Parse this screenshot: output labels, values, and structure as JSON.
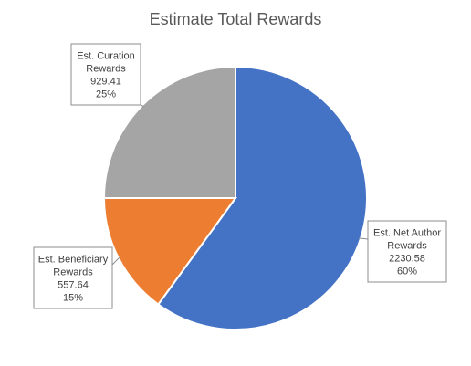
{
  "chart_data": {
    "type": "pie",
    "title": "Estimate Total Rewards",
    "slices": [
      {
        "label_lines": [
          "Est. Net Author",
          "Rewards"
        ],
        "value": 2230.58,
        "value_label": "2230.58",
        "percent_label": "60%",
        "color": "#4472C4"
      },
      {
        "label_lines": [
          "Est. Beneficiary",
          "Rewards"
        ],
        "value": 557.64,
        "value_label": "557.64",
        "percent_label": "15%",
        "color": "#ED7D31"
      },
      {
        "label_lines": [
          "Est. Curation",
          "Rewards"
        ],
        "value": 929.41,
        "value_label": "929.41",
        "percent_label": "25%",
        "color": "#A5A5A5"
      }
    ],
    "start_angle_deg": 0,
    "direction": "clockwise",
    "legend": "none"
  }
}
